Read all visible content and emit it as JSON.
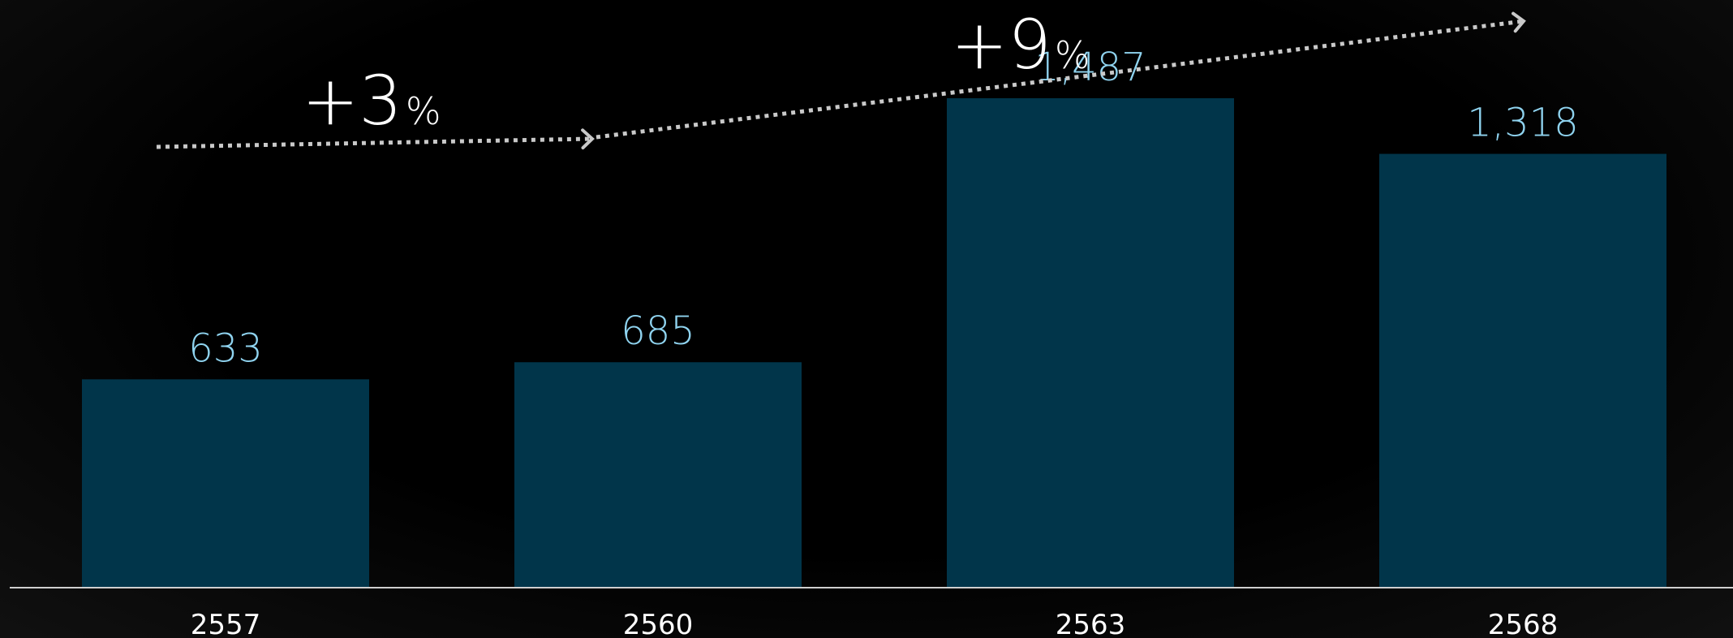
{
  "chart_data": {
    "type": "bar",
    "categories": [
      "2557",
      "2560",
      "2563",
      "2568"
    ],
    "values": [
      633,
      685,
      1487,
      1318
    ],
    "value_labels": [
      "633",
      "685",
      "1,487",
      "1,318"
    ],
    "title": "",
    "xlabel": "",
    "ylabel": "",
    "ylim": [
      0,
      1500
    ],
    "grid": false,
    "annotations": [
      {
        "from": "2557",
        "to": "2560",
        "number": "+3",
        "unit": "%"
      },
      {
        "from": "2560",
        "to": "2568",
        "number": "+9",
        "unit": "%"
      }
    ]
  },
  "colors": {
    "background": "#000000",
    "bar": "#01354a",
    "value_label": "#8fd3ef",
    "tick_label": "#ffffff",
    "baseline": "#cfcfcf",
    "arrow": "#c9c9c9",
    "annotation_text": "#ffffff"
  }
}
